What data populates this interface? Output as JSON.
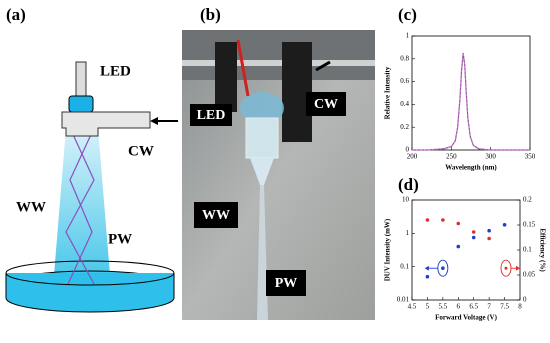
{
  "figure": {
    "panel_labels": [
      "(a)",
      "(b)",
      "(c)",
      "(d)"
    ],
    "diagram_labels": {
      "led": "LED",
      "cw": "CW",
      "ww": "WW",
      "pw": "PW"
    },
    "photo_labels": {
      "led": "LED",
      "cw": "CW",
      "ww": "WW",
      "pw": "PW"
    }
  },
  "chart_data": [
    {
      "type": "line",
      "x_label": "Wavelength (nm)",
      "y_label": "Relative Intensity",
      "xlim": [
        200,
        350
      ],
      "xticks": [
        200,
        250,
        300,
        350
      ],
      "ylim": [
        0,
        1
      ],
      "yticks": [
        0,
        0.2,
        0.4,
        0.6,
        0.8,
        1
      ],
      "series": [
        {
          "color": "#b03cb0",
          "x": [
            200,
            220,
            240,
            250,
            255,
            258,
            261,
            263,
            265,
            267,
            269,
            271,
            274,
            278,
            285,
            300,
            350
          ],
          "values": [
            0,
            0,
            0.01,
            0.03,
            0.08,
            0.2,
            0.45,
            0.7,
            0.85,
            0.75,
            0.5,
            0.28,
            0.12,
            0.04,
            0.01,
            0,
            0
          ]
        }
      ]
    },
    {
      "type": "scatter",
      "x_label": "Forward Voltage (V)",
      "y_label": "DUV Intensity (mW)",
      "y2_label": "Efficiency (%)",
      "xlim": [
        4.5,
        8
      ],
      "xticks": [
        4.5,
        5,
        5.5,
        6,
        6.5,
        7,
        7.5,
        8
      ],
      "ylim": [
        0.01,
        10
      ],
      "ylog": true,
      "yticks": [
        0.01,
        0.1,
        1,
        10
      ],
      "y2lim": [
        0,
        0.2
      ],
      "y2ticks": [
        0,
        0.05,
        0.1,
        0.15,
        0.2
      ],
      "series": [
        {
          "color": "#1f3fd0",
          "x": [
            5,
            5.5,
            6,
            6.5,
            7,
            7.5
          ],
          "values": [
            0.05,
            0.09,
            0.4,
            0.75,
            1.2,
            1.8
          ]
        },
        {
          "color": "#e0302a",
          "axis": "y2",
          "x": [
            5,
            5.5,
            6,
            6.5,
            7
          ],
          "values": [
            0.16,
            0.16,
            0.153,
            0.136,
            0.123
          ]
        }
      ]
    }
  ]
}
